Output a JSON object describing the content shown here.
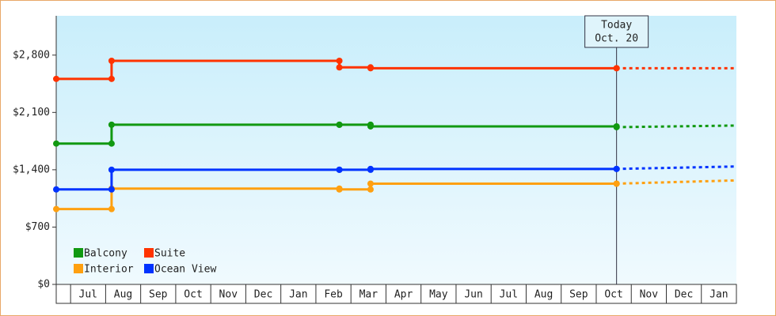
{
  "chart_data": {
    "type": "line",
    "step": true,
    "categories": [
      null,
      "Jul",
      "Aug",
      "Sep",
      "Oct",
      "Nov",
      "Dec",
      "Jan",
      "Feb",
      "Mar",
      "Apr",
      "May",
      "Jun",
      "Jul",
      "Aug",
      "Sep",
      "Oct",
      "Nov",
      "Dec",
      "Jan"
    ],
    "x": [
      -0.41,
      1.17,
      7.67,
      8.56,
      15.58
    ],
    "forecast_x": [
      15.58,
      19
    ],
    "xlim": [
      -0.41,
      19
    ],
    "ylim": [
      0,
      3280
    ],
    "yticks": [
      {
        "value": 0,
        "label": "$0"
      },
      {
        "value": 700,
        "label": "$700"
      },
      {
        "value": 1400,
        "label": "$1,400"
      },
      {
        "value": 2100,
        "label": "$2,100"
      },
      {
        "value": 2800,
        "label": "$2,800"
      }
    ],
    "series": [
      {
        "name": "Balcony",
        "color": "#119911",
        "values": [
          1720,
          1950,
          1950,
          1930,
          1920
        ],
        "forecast": [
          1920,
          1940
        ]
      },
      {
        "name": "Suite",
        "color": "#ff3300",
        "values": [
          2510,
          2730,
          2650,
          2640,
          2640
        ],
        "forecast": [
          2640,
          2640
        ]
      },
      {
        "name": "Interior",
        "color": "#ffa010",
        "values": [
          920,
          1170,
          1160,
          1230,
          1230
        ],
        "forecast": [
          1230,
          1270
        ]
      },
      {
        "name": "Ocean View",
        "color": "#0033ff",
        "values": [
          1160,
          1400,
          1400,
          1410,
          1410
        ],
        "forecast": [
          1410,
          1440
        ]
      }
    ],
    "annotation": {
      "x": 15.58,
      "label": [
        "Today",
        "Oct. 20"
      ]
    }
  }
}
